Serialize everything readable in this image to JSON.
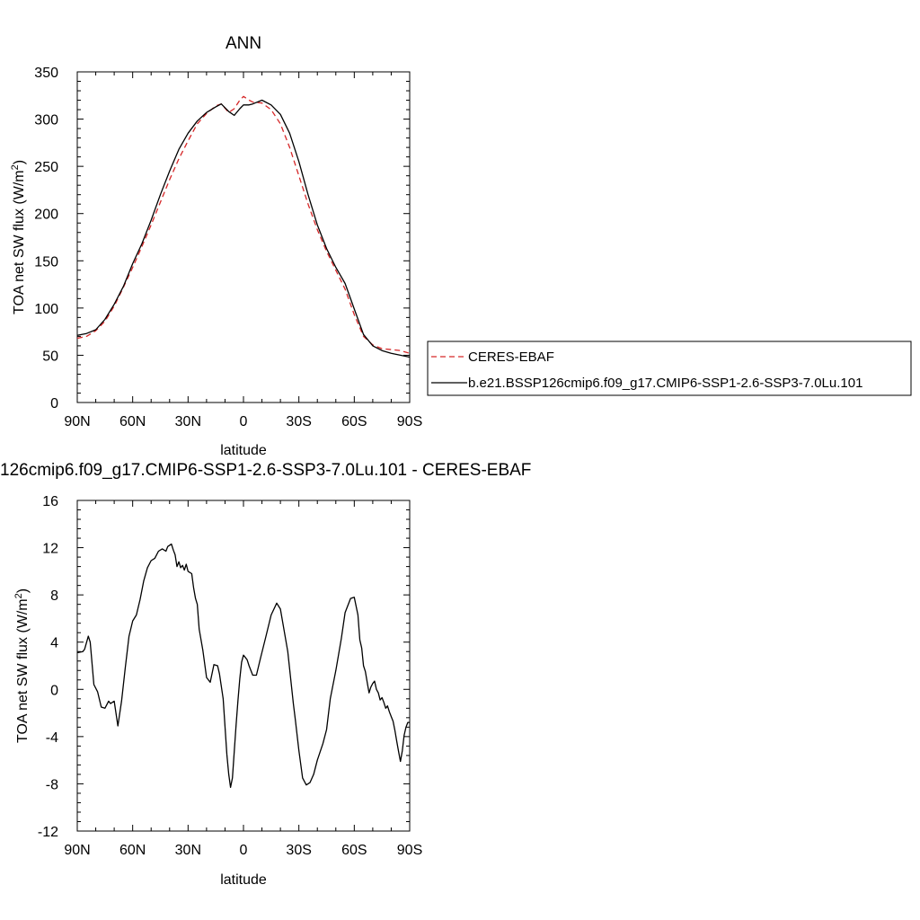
{
  "colors": {
    "observation": "#d62728",
    "model": "#000000",
    "axis": "#000000",
    "background": "#ffffff"
  },
  "legend": {
    "placement": "right-of-top-panel",
    "entries": [
      {
        "label": "CERES-EBAF",
        "style": "dashed",
        "color": "#d62728"
      },
      {
        "label": "b.e21.BSSP126cmip6.f09_g17.CMIP6-SSP1-2.6-SSP3-7.0Lu.101",
        "style": "solid",
        "color": "#000000"
      }
    ]
  },
  "chart_data": [
    {
      "type": "line",
      "title": "ANN",
      "xlabel": "latitude",
      "ylabel": "TOA net SW flux (W/m",
      "ylabel_sup": "2",
      "ylabel_close": ")",
      "xlim": [
        90,
        -90
      ],
      "ylim": [
        0,
        350
      ],
      "x_ticks": [
        90,
        60,
        30,
        0,
        -30,
        -60,
        -90
      ],
      "x_tick_labels": [
        "90N",
        "60N",
        "30N",
        "0",
        "30S",
        "60S",
        "90S"
      ],
      "y_ticks": [
        0,
        50,
        100,
        150,
        200,
        250,
        300,
        350
      ],
      "y_tick_labels": [
        "0",
        "50",
        "100",
        "150",
        "200",
        "250",
        "300",
        "350"
      ],
      "grid": false,
      "series": [
        {
          "name": "CERES-EBAF",
          "style": "dashed",
          "x": [
            90,
            85,
            80,
            75,
            70,
            65,
            60,
            55,
            50,
            45,
            40,
            35,
            30,
            25,
            20,
            15,
            12,
            8,
            5,
            2,
            0,
            -3,
            -5,
            -10,
            -15,
            -20,
            -25,
            -30,
            -35,
            -40,
            -45,
            -50,
            -55,
            -60,
            -65,
            -70,
            -75,
            -80,
            -85,
            -90
          ],
          "y": [
            68,
            70,
            76,
            86,
            102,
            122,
            143,
            165,
            188,
            212,
            236,
            258,
            277,
            295,
            306,
            314,
            316,
            307,
            311,
            320,
            324,
            320,
            318,
            317,
            310,
            295,
            270,
            240,
            210,
            183,
            160,
            140,
            120,
            93,
            70,
            61,
            57,
            56,
            55,
            52
          ]
        },
        {
          "name": "b.e21.BSSP126cmip6.f09_g17.CMIP6-SSP1-2.6-SSP3-7.0Lu.101",
          "style": "solid",
          "x": [
            90,
            85,
            80,
            75,
            70,
            65,
            60,
            55,
            50,
            45,
            40,
            35,
            30,
            25,
            20,
            15,
            12,
            8,
            5,
            2,
            0,
            -3,
            -5,
            -10,
            -15,
            -20,
            -25,
            -30,
            -35,
            -40,
            -45,
            -50,
            -55,
            -60,
            -65,
            -70,
            -75,
            -80,
            -85,
            -90
          ],
          "y": [
            71,
            73,
            77,
            88,
            104,
            123,
            147,
            168,
            193,
            220,
            245,
            268,
            285,
            298,
            307,
            313,
            316,
            308,
            304,
            311,
            315,
            315,
            316,
            320,
            315,
            305,
            285,
            255,
            220,
            188,
            163,
            143,
            126,
            99,
            72,
            60,
            55,
            52,
            50,
            48
          ]
        }
      ]
    },
    {
      "type": "line",
      "title": "126cmip6.f09_g17.CMIP6-SSP1-2.6-SSP3-7.0Lu.101 - CERES-EBAF",
      "xlabel": "latitude",
      "ylabel": "TOA net SW flux (W/m",
      "ylabel_sup": "2",
      "ylabel_close": ")",
      "xlim": [
        90,
        -90
      ],
      "ylim": [
        -12,
        16
      ],
      "x_ticks": [
        90,
        60,
        30,
        0,
        -30,
        -60,
        -90
      ],
      "x_tick_labels": [
        "90N",
        "60N",
        "30N",
        "0",
        "30S",
        "60S",
        "90S"
      ],
      "y_ticks": [
        -12,
        -8,
        -4,
        0,
        4,
        8,
        12,
        16
      ],
      "y_tick_labels": [
        "-12",
        "-8",
        "-4",
        "0",
        "4",
        "8",
        "12",
        "16"
      ],
      "grid": false,
      "series": [
        {
          "name": "",
          "style": "solid",
          "x": [
            90,
            87,
            86,
            84,
            83,
            81,
            79,
            77,
            75,
            73,
            72,
            70,
            68,
            66,
            64,
            62,
            60,
            58,
            56,
            54,
            52,
            50,
            48,
            46,
            44,
            42,
            41,
            39,
            38,
            37,
            36,
            35,
            34,
            33,
            32,
            31,
            30,
            28,
            27,
            26,
            25,
            24,
            22,
            20,
            18,
            16,
            14,
            13,
            11,
            10,
            9,
            8,
            7,
            6,
            5,
            4,
            3,
            2,
            1,
            0,
            -1,
            -2,
            -3,
            -5,
            -7,
            -9,
            -12,
            -15,
            -18,
            -20,
            -24,
            -27,
            -28,
            -30,
            -32,
            -34,
            -36,
            -38,
            -40,
            -43,
            -45,
            -47,
            -50,
            -53,
            -55,
            -58,
            -60,
            -62,
            -63,
            -64,
            -65,
            -66,
            -67,
            -68,
            -69,
            -70,
            -71,
            -72,
            -73,
            -74,
            -75,
            -76,
            -77,
            -78,
            -79,
            -80,
            -81,
            -82,
            -83,
            -84,
            -85,
            -86,
            -87,
            -88,
            -89,
            -90
          ],
          "y": [
            3.1,
            3.2,
            3.4,
            4.5,
            4.0,
            0.4,
            -0.2,
            -1.5,
            -1.6,
            -1.0,
            -1.2,
            -1.0,
            -3.1,
            -1.0,
            1.8,
            4.5,
            5.8,
            6.3,
            7.6,
            9.2,
            10.3,
            10.9,
            11.1,
            11.7,
            11.9,
            11.7,
            12.1,
            12.3,
            11.8,
            11.4,
            10.4,
            10.8,
            10.3,
            10.5,
            10.1,
            10.6,
            10.0,
            9.8,
            8.6,
            7.7,
            7.2,
            5.1,
            3.3,
            1.0,
            0.6,
            2.1,
            2.0,
            1.3,
            -0.8,
            -3.1,
            -5.5,
            -7.2,
            -8.3,
            -7.5,
            -5.3,
            -3.0,
            -1.0,
            0.9,
            2.3,
            2.9,
            2.7,
            2.5,
            2.0,
            1.2,
            1.2,
            2.5,
            4.4,
            6.3,
            7.3,
            6.8,
            3.2,
            -1.2,
            -2.5,
            -5.2,
            -7.5,
            -8.1,
            -7.9,
            -7.2,
            -6.0,
            -4.6,
            -3.4,
            -0.8,
            1.6,
            4.3,
            6.5,
            7.7,
            7.8,
            6.3,
            4.2,
            3.5,
            2.0,
            1.5,
            0.6,
            -0.3,
            0.2,
            0.5,
            0.7,
            0.0,
            -0.3,
            -0.9,
            -0.7,
            -1.1,
            -1.6,
            -1.4,
            -1.9,
            -2.3,
            -2.7,
            -3.5,
            -4.4,
            -5.3,
            -6.1,
            -5.2,
            -3.9,
            -3.2,
            -2.8,
            -2.8
          ]
        }
      ]
    }
  ]
}
